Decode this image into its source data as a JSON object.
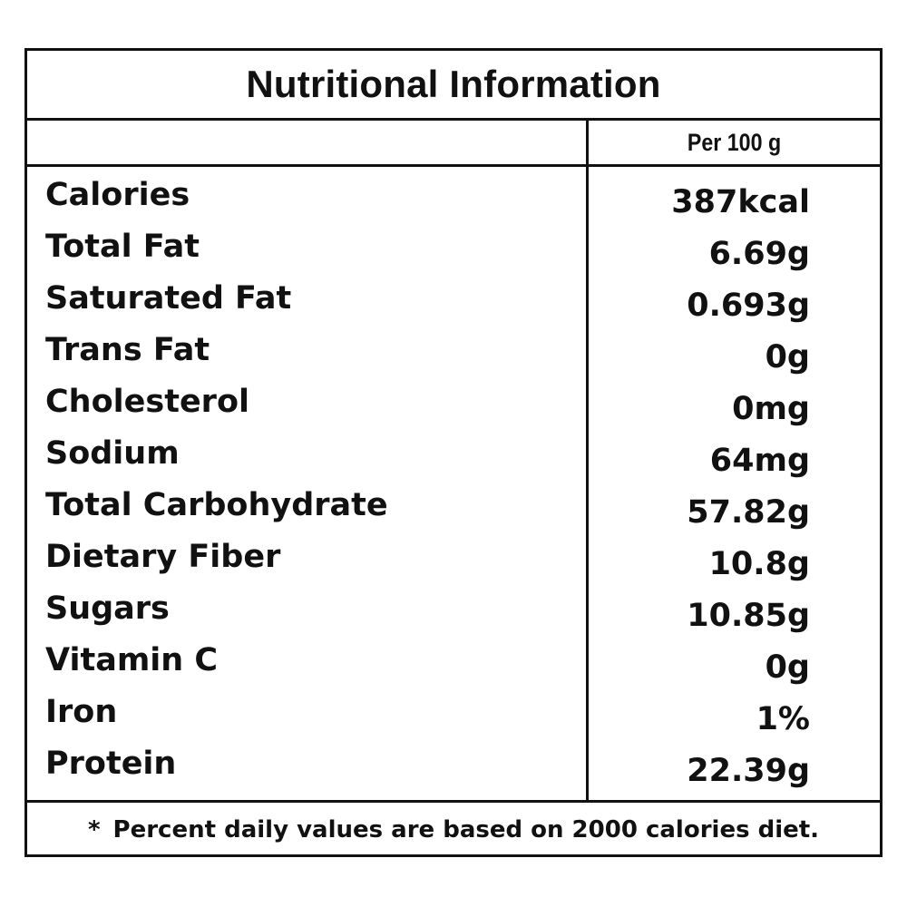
{
  "title": "Nutritional Information",
  "column_header": "Per 100 g",
  "nutrients": [
    {
      "name": "Calories",
      "value": "387kcal"
    },
    {
      "name": "Total Fat",
      "value": "6.69g"
    },
    {
      "name": "Saturated Fat",
      "value": "0.693g"
    },
    {
      "name": "Trans Fat",
      "value": "0g"
    },
    {
      "name": "Cholesterol",
      "value": "0mg"
    },
    {
      "name": "Sodium",
      "value": "64mg"
    },
    {
      "name": "Total Carbohydrate",
      "value": "57.82g"
    },
    {
      "name": "Dietary Fiber",
      "value": "10.8g"
    },
    {
      "name": "Sugars",
      "value": "10.85g"
    },
    {
      "name": "Vitamin C",
      "value": "0g"
    },
    {
      "name": "Iron",
      "value": "1%"
    },
    {
      "name": "Protein",
      "value": "22.39g"
    }
  ],
  "footnote": {
    "marker": "*",
    "text": "Percent daily values are based on 2000 calories diet."
  }
}
